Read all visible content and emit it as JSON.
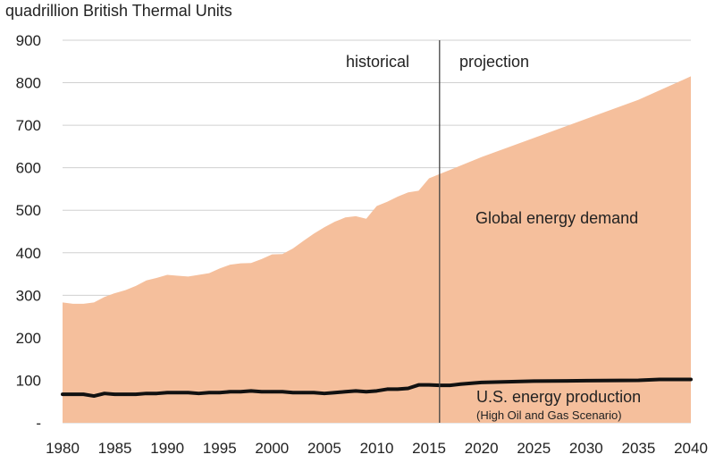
{
  "chart_data": {
    "type": "area",
    "ylabel": "quadrillion British Thermal Units",
    "ylim": [
      0,
      900
    ],
    "xlim": [
      1980,
      2040
    ],
    "grid": true,
    "y_ticks": [
      {
        "value": 900,
        "label": "900"
      },
      {
        "value": 800,
        "label": "800"
      },
      {
        "value": 700,
        "label": "700"
      },
      {
        "value": 600,
        "label": "600"
      },
      {
        "value": 500,
        "label": "500"
      },
      {
        "value": 400,
        "label": "400"
      },
      {
        "value": 300,
        "label": "300"
      },
      {
        "value": 200,
        "label": "200"
      },
      {
        "value": 100,
        "label": "100"
      },
      {
        "value": 0,
        "label": "-"
      }
    ],
    "x_ticks": [
      {
        "value": 1980,
        "label": "1980"
      },
      {
        "value": 1985,
        "label": "1985"
      },
      {
        "value": 1990,
        "label": "1990"
      },
      {
        "value": 1995,
        "label": "1995"
      },
      {
        "value": 2000,
        "label": "2000"
      },
      {
        "value": 2005,
        "label": "2005"
      },
      {
        "value": 2010,
        "label": "2010"
      },
      {
        "value": 2015,
        "label": "2015"
      },
      {
        "value": 2020,
        "label": "2020"
      },
      {
        "value": 2025,
        "label": "2025"
      },
      {
        "value": 2030,
        "label": "2030"
      },
      {
        "value": 2035,
        "label": "2035"
      },
      {
        "value": 2040,
        "label": "2040"
      }
    ],
    "divider_year": 2016,
    "annotations": {
      "historical": "historical",
      "projection": "projection",
      "demand_label": "Global energy demand",
      "production_label": "U.S. energy production",
      "production_sublabel": "(High Oil and Gas Scenario)"
    },
    "colors": {
      "demand_fill": "#f5bf9c",
      "production_line": "#111111",
      "grid": "#d0d0d0",
      "divider": "#444444"
    },
    "series": [
      {
        "name": "Global energy demand",
        "kind": "area",
        "x": [
          1980,
          1981,
          1982,
          1983,
          1984,
          1985,
          1986,
          1987,
          1988,
          1989,
          1990,
          1991,
          1992,
          1993,
          1994,
          1995,
          1996,
          1997,
          1998,
          1999,
          2000,
          2001,
          2002,
          2003,
          2004,
          2005,
          2006,
          2007,
          2008,
          2009,
          2010,
          2011,
          2012,
          2013,
          2014,
          2015,
          2016,
          2020,
          2025,
          2030,
          2035,
          2040
        ],
        "values": [
          283,
          280,
          280,
          283,
          296,
          305,
          312,
          322,
          335,
          341,
          348,
          346,
          344,
          348,
          352,
          363,
          372,
          375,
          376,
          385,
          396,
          397,
          410,
          428,
          445,
          460,
          473,
          483,
          486,
          480,
          510,
          520,
          532,
          542,
          546,
          575,
          585,
          625,
          670,
          715,
          760,
          815
        ]
      },
      {
        "name": "U.S. energy production",
        "kind": "line",
        "x": [
          1980,
          1981,
          1982,
          1983,
          1984,
          1985,
          1986,
          1987,
          1988,
          1989,
          1990,
          1991,
          1992,
          1993,
          1994,
          1995,
          1996,
          1997,
          1998,
          1999,
          2000,
          2001,
          2002,
          2003,
          2004,
          2005,
          2006,
          2007,
          2008,
          2009,
          2010,
          2011,
          2012,
          2013,
          2014,
          2015,
          2016,
          2017,
          2018,
          2020,
          2025,
          2030,
          2035,
          2037,
          2040
        ],
        "values": [
          67,
          67,
          67,
          63,
          69,
          67,
          67,
          67,
          69,
          69,
          71,
          71,
          71,
          69,
          71,
          71,
          73,
          73,
          75,
          73,
          73,
          73,
          71,
          71,
          71,
          69,
          71,
          73,
          75,
          73,
          75,
          79,
          79,
          81,
          89,
          89,
          88,
          88,
          91,
          95,
          98,
          99,
          100,
          102,
          102
        ]
      }
    ]
  }
}
